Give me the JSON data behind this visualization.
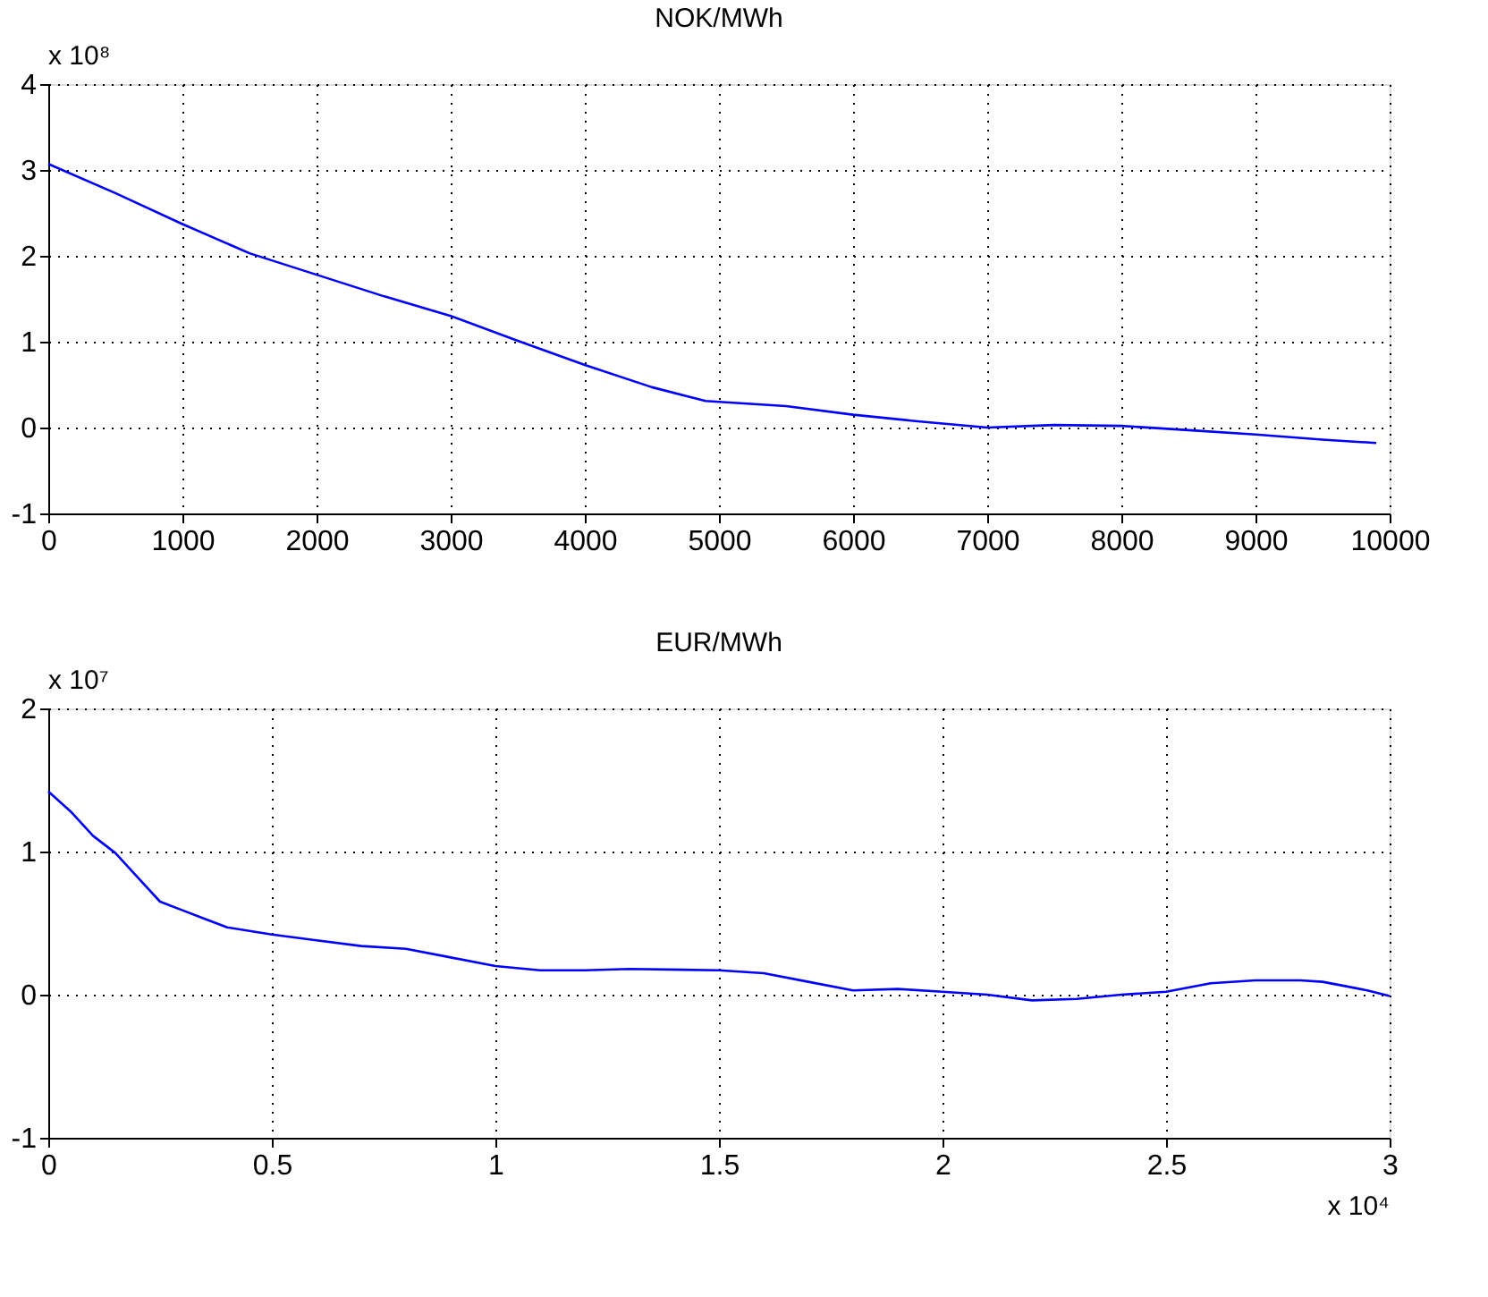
{
  "chart_data": [
    {
      "type": "line",
      "title": "NOK/MWh",
      "annotations": [
        "x 10⁸"
      ],
      "x": [
        0,
        500,
        1000,
        1500,
        2000,
        2500,
        3000,
        3500,
        4000,
        4500,
        4900,
        5000,
        5500,
        6000,
        6500,
        7000,
        7500,
        8000,
        8500,
        9000,
        9500,
        9900
      ],
      "series": [
        {
          "color": "#0000ff",
          "values": [
            3.07,
            2.73,
            2.37,
            2.03,
            1.78,
            1.53,
            1.3,
            1.01,
            0.73,
            0.47,
            0.31,
            0.3,
            0.25,
            0.15,
            0.07,
            0.0,
            0.03,
            0.02,
            -0.03,
            -0.08,
            -0.14,
            -0.18
          ]
        }
      ],
      "xlim": [
        0,
        10000
      ],
      "xticks": [
        0,
        1000,
        2000,
        3000,
        4000,
        5000,
        6000,
        7000,
        8000,
        9000,
        10000
      ],
      "ylim": [
        -1,
        4
      ],
      "yticks": [
        -1,
        0,
        1,
        2,
        3,
        4
      ],
      "grid": true,
      "line_style": "solid"
    },
    {
      "type": "line",
      "title": "EUR/MWh",
      "annotations": [
        "x 10⁷",
        "x 10⁴"
      ],
      "x": [
        0,
        0.05,
        0.1,
        0.15,
        0.2,
        0.25,
        0.3,
        0.35,
        0.4,
        0.5,
        0.6,
        0.7,
        0.8,
        0.9,
        1.0,
        1.1,
        1.2,
        1.3,
        1.5,
        1.6,
        1.7,
        1.8,
        1.9,
        2.0,
        2.1,
        2.2,
        2.3,
        2.4,
        2.5,
        2.6,
        2.7,
        2.8,
        2.85,
        2.9,
        2.95,
        3.0
      ],
      "series": [
        {
          "color": "#0000ff",
          "values": [
            1.42,
            1.28,
            1.11,
            0.99,
            0.82,
            0.65,
            0.59,
            0.53,
            0.47,
            0.42,
            0.38,
            0.34,
            0.32,
            0.26,
            0.2,
            0.17,
            0.17,
            0.18,
            0.17,
            0.15,
            0.09,
            0.03,
            0.04,
            0.02,
            0.0,
            -0.04,
            -0.03,
            0.0,
            0.02,
            0.08,
            0.1,
            0.1,
            0.09,
            0.06,
            0.03,
            -0.01
          ]
        }
      ],
      "xlim": [
        0,
        3
      ],
      "xticks": [
        0,
        0.5,
        1,
        1.5,
        2,
        2.5,
        3
      ],
      "ylim": [
        -1,
        2
      ],
      "yticks": [
        -1,
        0,
        1,
        2
      ],
      "grid": true,
      "line_style": "solid"
    }
  ]
}
